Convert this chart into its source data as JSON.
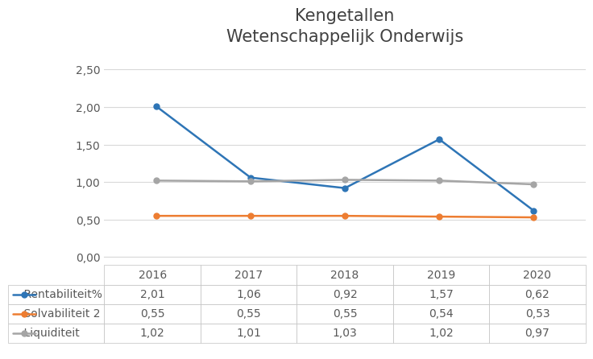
{
  "title": "Kengetallen\nWetenschappelijk Onderwijs",
  "years": [
    2016,
    2017,
    2018,
    2019,
    2020
  ],
  "series": [
    {
      "label": "Rentabiliteit%",
      "values": [
        2.01,
        1.06,
        0.92,
        1.57,
        0.62
      ],
      "color": "#2E75B6",
      "marker": "o"
    },
    {
      "label": "Solvabiliteit 2",
      "values": [
        0.55,
        0.55,
        0.55,
        0.54,
        0.53
      ],
      "color": "#ED7D31",
      "marker": "o"
    },
    {
      "label": "Liquiditeit",
      "values": [
        1.02,
        1.01,
        1.03,
        1.02,
        0.97
      ],
      "color": "#A5A5A5",
      "marker": "o"
    }
  ],
  "ylim": [
    0.0,
    2.75
  ],
  "yticks": [
    0.0,
    0.5,
    1.0,
    1.5,
    2.0,
    2.5
  ],
  "ytick_labels": [
    "0,00",
    "0,50",
    "1,00",
    "1,50",
    "2,00",
    "2,50"
  ],
  "background_color": "#FFFFFF",
  "grid_color": "#D9D9D9",
  "title_fontsize": 15,
  "tick_fontsize": 10,
  "table_fontsize": 10,
  "table_values": [
    [
      "2,01",
      "1,06",
      "0,92",
      "1,57",
      "0,62"
    ],
    [
      "0,55",
      "0,55",
      "0,55",
      "0,54",
      "0,53"
    ],
    [
      "1,02",
      "1,01",
      "1,03",
      "1,02",
      "0,97"
    ]
  ],
  "table_row_labels": [
    "Rentabiliteit%",
    "Solvabiliteit 2",
    "Liquiditeit"
  ],
  "table_col_labels": [
    "2016",
    "2017",
    "2018",
    "2019",
    "2020"
  ],
  "table_row_colors": [
    "#2E75B6",
    "#ED7D31",
    "#A5A5A5"
  ]
}
